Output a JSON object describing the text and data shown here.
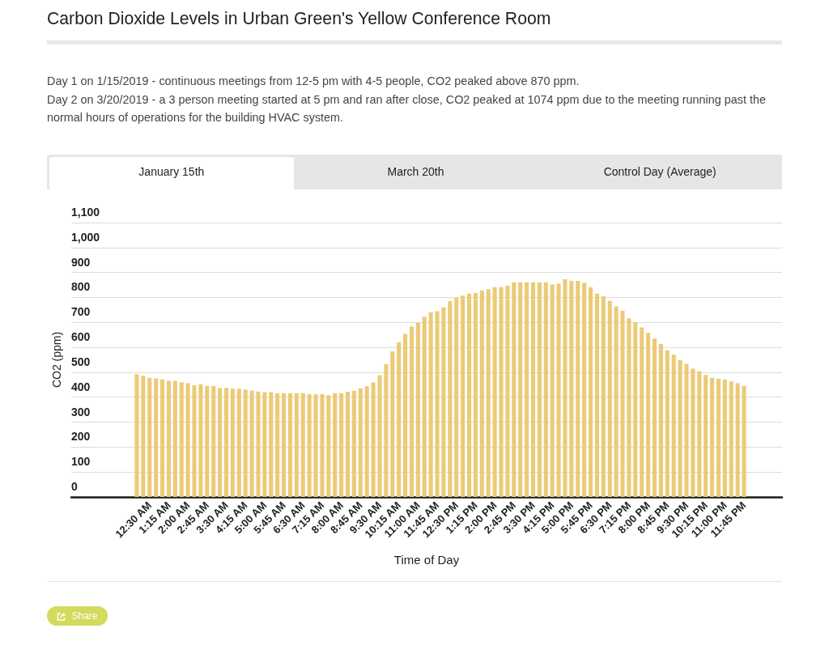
{
  "chart_data": {
    "type": "bar",
    "title": "Carbon Dioxide Levels in Urban Green's Yellow Conference Room",
    "subtitle": "Day 1 on 1/15/2019 - continuous meetings from 12-5 pm with 4-5 people, CO2 peaked above 870 ppm.\nDay 2 on 3/20/2019 - a 3 person meeting started at 5 pm and ran after close, CO2 peaked at 1074 ppm due to the meeting running past the normal hours of operations for the building HVAC system.",
    "xlabel": "Time of Day",
    "ylabel": "CO2 (ppm)",
    "annotations": [
      "January 15th",
      "March 20th",
      "Control Day (Average)",
      "Share"
    ],
    "categories": [
      null,
      null,
      "12:30 AM",
      null,
      null,
      "1:15 AM",
      null,
      null,
      "2:00 AM",
      null,
      null,
      "2:45 AM",
      null,
      null,
      "3:30 AM",
      null,
      null,
      "4:15 AM",
      null,
      null,
      "5:00 AM",
      null,
      null,
      "5:45 AM",
      null,
      null,
      "6:30 AM",
      null,
      null,
      "7:15 AM",
      null,
      null,
      "8:00 AM",
      null,
      null,
      "8:45 AM",
      null,
      null,
      "9:30 AM",
      null,
      null,
      "10:15 AM",
      null,
      null,
      "11:00 AM",
      null,
      null,
      "11:45 AM",
      null,
      null,
      "12:30 PM",
      null,
      null,
      "1:15 PM",
      null,
      null,
      "2:00 PM",
      null,
      null,
      "2:45 PM",
      null,
      null,
      "3:30 PM",
      null,
      null,
      "4:15 PM",
      null,
      null,
      "5:00 PM",
      null,
      null,
      "5:45 PM",
      null,
      null,
      "6:30 PM",
      null,
      null,
      "7:15 PM",
      null,
      null,
      "8:00 PM",
      null,
      null,
      "8:45 PM",
      null,
      null,
      "9:30 PM",
      null,
      null,
      "10:15 PM",
      null,
      null,
      "11:00 PM",
      null,
      null,
      "11:45 PM"
    ],
    "values": [
      492,
      486,
      478,
      475,
      471,
      466,
      466,
      460,
      456,
      448,
      452,
      445,
      445,
      437,
      437,
      434,
      434,
      431,
      426,
      423,
      420,
      420,
      416,
      416,
      416,
      416,
      416,
      412,
      412,
      412,
      408,
      416,
      416,
      422,
      426,
      436,
      444,
      459,
      488,
      532,
      583,
      620,
      654,
      683,
      699,
      723,
      741,
      745,
      760,
      785,
      799,
      807,
      815,
      818,
      828,
      833,
      841,
      841,
      847,
      861,
      861,
      861,
      861,
      861,
      861,
      852,
      855,
      873,
      866,
      866,
      858,
      841,
      815,
      804,
      786,
      764,
      746,
      716,
      699,
      680,
      658,
      635,
      613,
      588,
      570,
      548,
      534,
      514,
      504,
      489,
      478,
      474,
      471,
      463,
      456,
      445
    ],
    "color": "#ecca76",
    "ylim": [
      0,
      1100
    ],
    "yticks": [
      0,
      100,
      200,
      300,
      400,
      500,
      600,
      700,
      800,
      900,
      {
        "value": 1000,
        "label": "1,000"
      },
      {
        "value": 1100,
        "label": "1,100"
      }
    ],
    "grid": "y"
  }
}
